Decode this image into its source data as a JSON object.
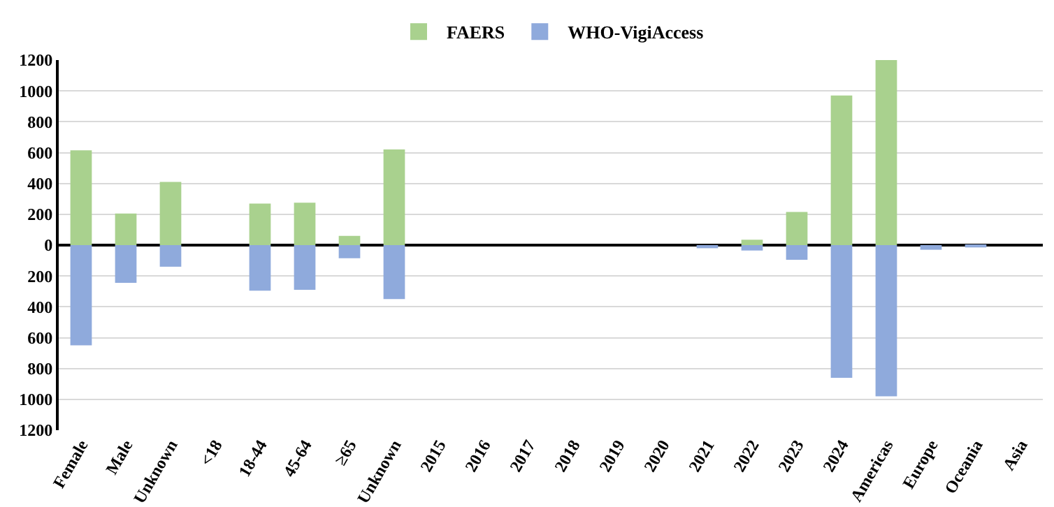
{
  "chart_data": {
    "type": "bar",
    "stacked": true,
    "categories": [
      "Female",
      "Male",
      "Unknown",
      "<18",
      "18-44",
      "45-64",
      "≥65",
      "Unknown",
      "2015",
      "2016",
      "2017",
      "2018",
      "2019",
      "2020",
      "2021",
      "2022",
      "2023",
      "2024",
      "Americas",
      "Europe",
      "Oceania",
      "Asia"
    ],
    "series": [
      {
        "name": "FAERS",
        "color": "#a9d18e",
        "values": [
          615,
          205,
          410,
          0,
          270,
          275,
          60,
          620,
          0,
          0,
          0,
          0,
          0,
          0,
          0,
          35,
          215,
          970,
          1200,
          0,
          0,
          0
        ]
      },
      {
        "name": "WHO-VigiAccess",
        "color": "#8faadc",
        "values": [
          -650,
          -245,
          -140,
          0,
          -295,
          -290,
          -85,
          -350,
          0,
          0,
          0,
          0,
          0,
          0,
          -20,
          -35,
          -95,
          -860,
          -980,
          -30,
          -15,
          0
        ]
      }
    ],
    "ylim": [
      -1200,
      1200
    ],
    "yticks": [
      {
        "value": -1200,
        "label": "1200"
      },
      {
        "value": -1000,
        "label": "1000"
      },
      {
        "value": -800,
        "label": "800"
      },
      {
        "value": -600,
        "label": "600"
      },
      {
        "value": -400,
        "label": "400"
      },
      {
        "value": -200,
        "label": "200"
      },
      0,
      200,
      400,
      600,
      800,
      1000,
      1200
    ],
    "grid": "y",
    "legend": "top"
  }
}
